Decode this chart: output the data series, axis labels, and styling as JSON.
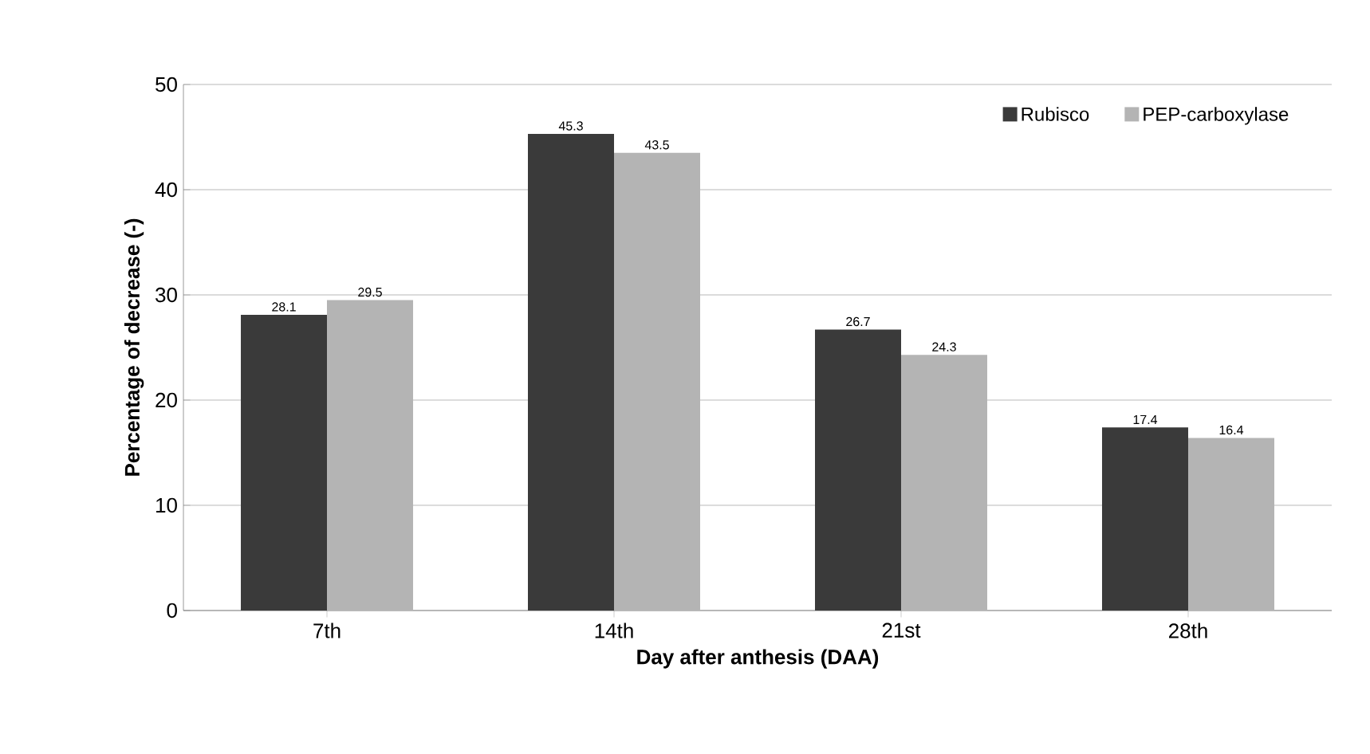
{
  "chart_data": {
    "type": "bar",
    "xlabel": "Day after anthesis (DAA)",
    "ylabel": "Percentage of  decrease (-)",
    "categories": [
      "7th",
      "14th",
      "21st",
      "28th"
    ],
    "series": [
      {
        "name": "Rubisco",
        "color": "#3a3a3a",
        "values": [
          28.1,
          45.3,
          26.7,
          17.4
        ]
      },
      {
        "name": "PEP-carboxylase",
        "color": "#b4b4b4",
        "values": [
          29.5,
          43.5,
          24.3,
          16.4
        ]
      }
    ],
    "ylim": [
      0,
      50
    ],
    "yticks": [
      0,
      10,
      20,
      30,
      40,
      50
    ],
    "grid": "y",
    "legend": "top right",
    "data_labels": true
  }
}
